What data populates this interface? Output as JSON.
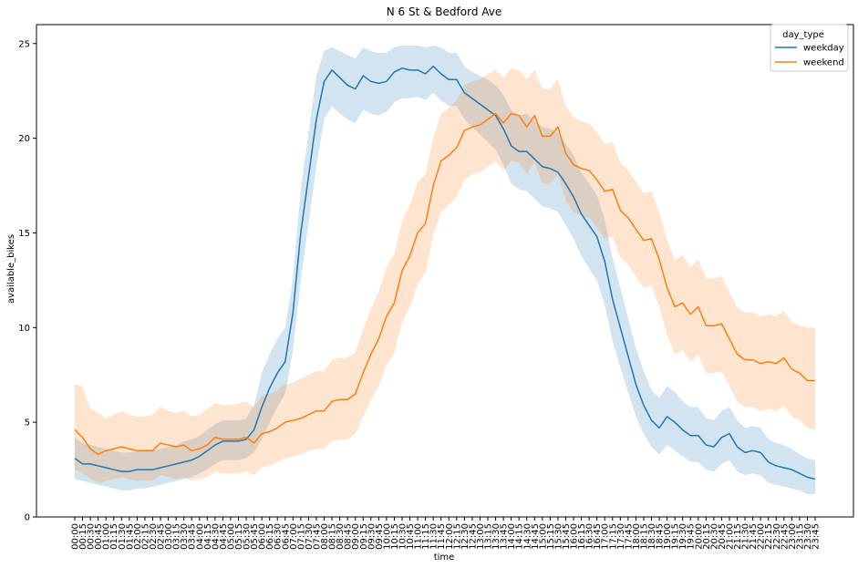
{
  "chart_data": {
    "type": "line",
    "title": "N 6 St & Bedford Ave",
    "xlabel": "time",
    "ylabel": "available_bikes",
    "ylim": [
      0,
      26
    ],
    "yticks": [
      0,
      5,
      10,
      15,
      20,
      25
    ],
    "categories": [
      "00:00",
      "00:15",
      "00:30",
      "00:45",
      "01:00",
      "01:15",
      "01:30",
      "01:45",
      "02:00",
      "02:15",
      "02:30",
      "02:45",
      "03:00",
      "03:15",
      "03:30",
      "03:45",
      "04:00",
      "04:15",
      "04:30",
      "04:45",
      "05:00",
      "05:15",
      "05:30",
      "05:45",
      "06:00",
      "06:15",
      "06:30",
      "06:45",
      "07:00",
      "07:15",
      "07:30",
      "07:45",
      "08:00",
      "08:15",
      "08:30",
      "08:45",
      "09:00",
      "09:15",
      "09:30",
      "09:45",
      "10:00",
      "10:15",
      "10:30",
      "10:45",
      "11:00",
      "11:15",
      "11:30",
      "11:45",
      "12:00",
      "12:15",
      "12:30",
      "12:45",
      "13:00",
      "13:15",
      "13:30",
      "13:45",
      "14:00",
      "14:15",
      "14:30",
      "14:45",
      "15:00",
      "15:15",
      "15:30",
      "15:45",
      "16:00",
      "16:15",
      "16:30",
      "16:45",
      "17:00",
      "17:15",
      "17:30",
      "17:45",
      "18:00",
      "18:15",
      "18:30",
      "18:45",
      "19:00",
      "19:15",
      "19:30",
      "19:45",
      "20:00",
      "20:15",
      "20:30",
      "20:45",
      "21:00",
      "21:15",
      "21:30",
      "21:45",
      "22:00",
      "22:15",
      "22:30",
      "22:45",
      "23:00",
      "23:15",
      "23:30",
      "23:45"
    ],
    "legend": {
      "title": "day_type",
      "position": "upper right"
    },
    "grid": false,
    "series": [
      {
        "name": "weekday",
        "color": "#1f77b4",
        "values": [
          3.1,
          2.8,
          2.8,
          2.7,
          2.6,
          2.5,
          2.4,
          2.4,
          2.5,
          2.5,
          2.5,
          2.6,
          2.7,
          2.8,
          2.9,
          3.0,
          3.2,
          3.5,
          3.8,
          4.0,
          4.0,
          4.0,
          4.1,
          4.6,
          5.8,
          6.8,
          7.6,
          8.2,
          10.8,
          15.0,
          18.0,
          21.0,
          23.0,
          23.6,
          23.2,
          22.8,
          22.6,
          23.3,
          23.0,
          22.9,
          23.0,
          23.5,
          23.7,
          23.6,
          23.6,
          23.4,
          23.8,
          23.4,
          23.1,
          23.1,
          22.4,
          22.1,
          21.8,
          21.5,
          21.2,
          20.5,
          19.6,
          19.3,
          19.3,
          18.9,
          18.5,
          18.4,
          18.2,
          17.6,
          16.9,
          16.0,
          15.4,
          14.8,
          13.5,
          11.5,
          10.0,
          8.5,
          7.0,
          5.9,
          5.1,
          4.7,
          5.3,
          5.0,
          4.6,
          4.3,
          4.3,
          3.8,
          3.7,
          4.2,
          4.4,
          3.7,
          3.4,
          3.5,
          3.4,
          2.9,
          2.7,
          2.6,
          2.5,
          2.3,
          2.1,
          2.0
        ],
        "lower": [
          2.0,
          1.9,
          1.8,
          1.7,
          1.6,
          1.5,
          1.4,
          1.4,
          1.5,
          1.5,
          1.6,
          1.7,
          1.8,
          1.9,
          2.0,
          2.1,
          2.3,
          2.5,
          2.8,
          3.0,
          3.0,
          3.0,
          3.1,
          3.4,
          4.1,
          5.0,
          5.8,
          6.5,
          8.8,
          12.5,
          15.5,
          18.5,
          21.0,
          21.7,
          21.3,
          21.0,
          20.8,
          21.5,
          21.3,
          21.2,
          21.4,
          21.9,
          22.1,
          22.1,
          22.2,
          22.0,
          22.4,
          22.0,
          21.7,
          21.7,
          21.0,
          20.6,
          20.2,
          19.8,
          19.4,
          18.6,
          17.6,
          17.3,
          17.2,
          16.8,
          16.4,
          16.3,
          16.1,
          15.4,
          14.7,
          13.8,
          13.1,
          12.5,
          11.2,
          9.3,
          7.9,
          6.6,
          5.3,
          4.4,
          3.7,
          3.3,
          3.8,
          3.5,
          3.2,
          2.9,
          2.9,
          2.5,
          2.4,
          2.8,
          3.0,
          2.4,
          2.2,
          2.3,
          2.2,
          1.8,
          1.7,
          1.6,
          1.5,
          1.4,
          1.2,
          1.2
        ],
        "upper": [
          4.2,
          3.9,
          3.8,
          3.7,
          3.6,
          3.5,
          3.4,
          3.4,
          3.5,
          3.5,
          3.5,
          3.6,
          3.7,
          3.8,
          4.0,
          4.1,
          4.3,
          4.6,
          4.9,
          5.1,
          5.1,
          5.1,
          5.2,
          5.9,
          7.6,
          8.6,
          9.4,
          10.0,
          12.6,
          17.3,
          20.3,
          23.3,
          24.6,
          24.8,
          24.6,
          24.4,
          24.2,
          24.8,
          24.6,
          24.5,
          24.5,
          24.8,
          24.9,
          24.9,
          24.9,
          24.8,
          24.9,
          24.8,
          24.5,
          24.5,
          23.8,
          23.5,
          23.3,
          23.1,
          22.8,
          22.3,
          21.5,
          21.2,
          21.3,
          20.9,
          20.6,
          20.5,
          20.3,
          19.7,
          19.1,
          18.2,
          17.6,
          17.0,
          15.7,
          13.7,
          12.1,
          10.5,
          8.9,
          7.7,
          6.7,
          6.3,
          6.9,
          6.6,
          6.1,
          5.8,
          5.8,
          5.2,
          5.1,
          5.6,
          5.8,
          5.1,
          4.7,
          4.8,
          4.7,
          4.1,
          3.9,
          3.8,
          3.6,
          3.3,
          3.1,
          3.0
        ]
      },
      {
        "name": "weekend",
        "color": "#ff7f0e",
        "values": [
          4.6,
          4.2,
          3.6,
          3.3,
          3.5,
          3.6,
          3.7,
          3.6,
          3.5,
          3.5,
          3.5,
          3.9,
          3.8,
          3.7,
          3.8,
          3.5,
          3.6,
          3.8,
          4.2,
          4.1,
          4.1,
          4.1,
          4.2,
          3.9,
          4.4,
          4.5,
          4.7,
          5.0,
          5.1,
          5.2,
          5.4,
          5.6,
          5.6,
          6.1,
          6.2,
          6.2,
          6.5,
          7.6,
          8.6,
          9.4,
          10.6,
          11.3,
          13.0,
          13.8,
          15.0,
          15.5,
          17.5,
          18.8,
          19.1,
          19.5,
          20.4,
          20.6,
          20.7,
          21.0,
          21.3,
          20.8,
          21.3,
          21.2,
          20.6,
          21.2,
          20.1,
          20.1,
          20.6,
          19.2,
          18.6,
          18.4,
          18.3,
          17.8,
          17.2,
          17.3,
          16.2,
          15.8,
          15.2,
          14.6,
          14.7,
          13.6,
          12.1,
          11.1,
          11.3,
          10.7,
          11.1,
          10.1,
          10.1,
          10.2,
          9.4,
          8.6,
          8.3,
          8.3,
          8.1,
          8.2,
          8.1,
          8.4,
          7.8,
          7.6,
          7.2,
          7.2
        ],
        "lower": [
          2.5,
          2.3,
          2.0,
          1.8,
          1.9,
          2.0,
          2.1,
          2.0,
          1.9,
          1.9,
          1.9,
          2.2,
          2.1,
          2.0,
          2.1,
          1.9,
          2.0,
          2.1,
          2.4,
          2.3,
          2.3,
          2.3,
          2.4,
          2.2,
          2.6,
          2.7,
          2.9,
          3.1,
          3.2,
          3.3,
          3.5,
          3.6,
          3.6,
          4.0,
          4.1,
          4.1,
          4.4,
          5.3,
          6.2,
          6.9,
          8.0,
          8.7,
          10.3,
          11.1,
          12.3,
          12.9,
          14.9,
          16.1,
          16.5,
          16.9,
          17.8,
          18.1,
          18.2,
          18.5,
          18.8,
          18.3,
          18.8,
          18.7,
          18.1,
          18.7,
          17.6,
          17.6,
          18.1,
          16.7,
          16.1,
          15.9,
          15.8,
          15.3,
          14.7,
          14.8,
          13.7,
          13.3,
          12.7,
          12.1,
          12.2,
          11.1,
          9.6,
          8.6,
          8.8,
          8.2,
          8.6,
          7.6,
          7.6,
          7.7,
          6.9,
          6.1,
          5.8,
          5.8,
          5.6,
          5.7,
          5.6,
          5.9,
          5.3,
          5.1,
          4.7,
          4.6
        ],
        "upper": [
          7.0,
          6.9,
          5.7,
          5.5,
          5.2,
          5.4,
          5.6,
          5.4,
          5.3,
          5.3,
          5.4,
          5.8,
          5.6,
          5.5,
          5.6,
          5.3,
          5.4,
          5.7,
          6.0,
          5.9,
          5.9,
          6.0,
          6.1,
          5.8,
          6.4,
          6.5,
          6.7,
          7.0,
          7.1,
          7.3,
          7.5,
          7.7,
          7.7,
          8.3,
          8.4,
          8.4,
          8.7,
          9.9,
          11.0,
          11.9,
          13.2,
          13.9,
          15.6,
          16.5,
          17.7,
          18.1,
          20.0,
          21.3,
          21.6,
          22.0,
          22.8,
          23.0,
          23.1,
          23.4,
          23.6,
          23.2,
          23.7,
          23.6,
          23.1,
          23.6,
          22.6,
          22.6,
          23.1,
          21.7,
          21.1,
          20.9,
          20.8,
          20.3,
          19.7,
          19.8,
          18.7,
          18.3,
          17.7,
          17.1,
          17.2,
          16.1,
          14.6,
          13.6,
          13.8,
          13.2,
          13.6,
          12.6,
          12.6,
          12.7,
          11.9,
          11.1,
          10.8,
          10.8,
          10.6,
          10.7,
          10.6,
          10.9,
          10.3,
          10.1,
          10.0,
          10.0
        ]
      }
    ]
  }
}
